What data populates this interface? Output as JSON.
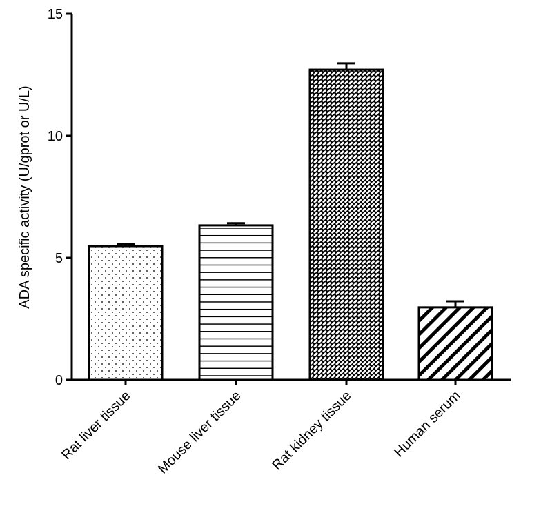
{
  "chart_data": {
    "type": "bar",
    "title": "",
    "xlabel": "",
    "ylabel": "ADA specific activity (U/gprot or U/L)",
    "ylim": [
      0,
      15
    ],
    "yticks": [
      0,
      5,
      10,
      15
    ],
    "grid": false,
    "categories": [
      "Rat liver tissue",
      "Mouse liver tissue",
      "Rat kidney tissue",
      "Human serum"
    ],
    "values": [
      5.48,
      6.33,
      12.71,
      2.97
    ],
    "error_upper": [
      0.08,
      0.09,
      0.26,
      0.25
    ],
    "fill_patterns": [
      "dots",
      "horizontal-lines",
      "crosshatch",
      "diagonal-stripes"
    ],
    "colors": {
      "stroke": "#000000",
      "background": "#ffffff"
    }
  }
}
